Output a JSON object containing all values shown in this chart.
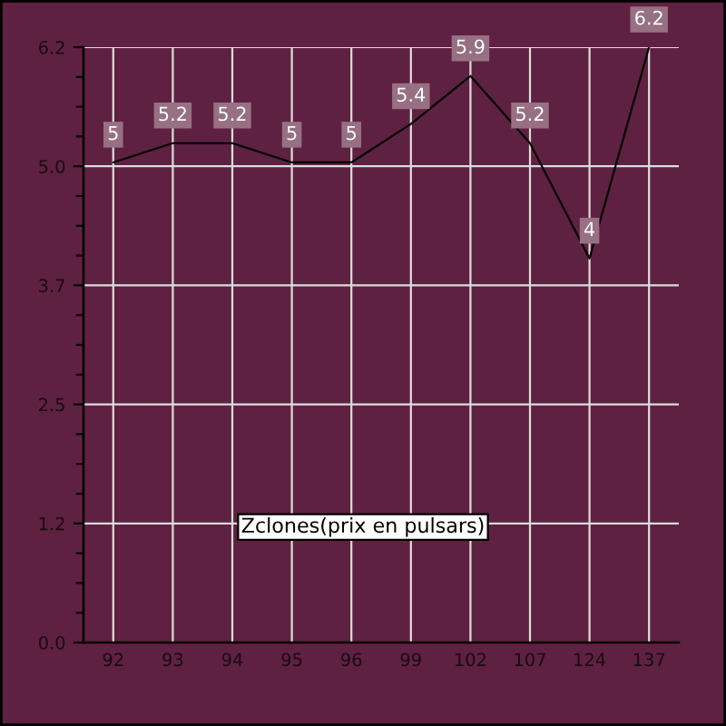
{
  "chart_data": {
    "type": "line",
    "title": "Zclones(prix en pulsars)",
    "categories": [
      "92",
      "93",
      "94",
      "95",
      "96",
      "99",
      "102",
      "107",
      "124",
      "137"
    ],
    "series": [
      {
        "color": "#000000",
        "values": [
          5,
          5.2,
          5.2,
          5,
          5,
          5.4,
          5.9,
          5.2,
          4,
          6.2
        ]
      }
    ],
    "ylim": [
      0,
      6.2
    ],
    "yticks": [
      {
        "value": 0,
        "label": "0.0"
      },
      {
        "value": 1.24,
        "label": "1.2"
      },
      {
        "value": 2.48,
        "label": "2.5"
      },
      {
        "value": 3.72,
        "label": "3.7"
      },
      {
        "value": 4.96,
        "label": "5.0"
      },
      6.2
    ],
    "grid": true,
    "data_labels": true
  }
}
